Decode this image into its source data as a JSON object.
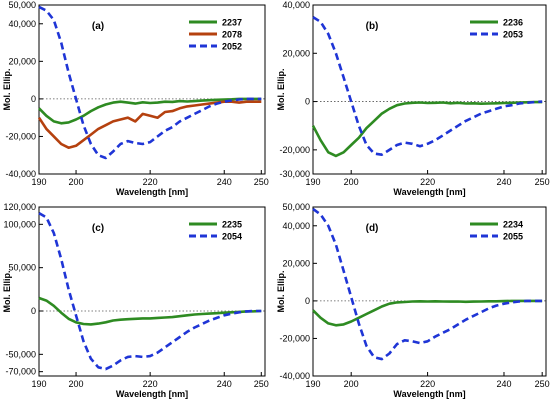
{
  "chart_data": [
    {
      "type": "line",
      "panel_label": "(a)",
      "xlabel": "Wavelength [nm]",
      "ylabel": "Mol. Ellip.",
      "xlim": [
        190,
        251
      ],
      "ylim": [
        -40000,
        50000
      ],
      "xticks": [
        190,
        200,
        220,
        240,
        250
      ],
      "yticks": [
        -40000,
        -20000,
        0,
        20000,
        40000,
        50000
      ],
      "ytick_labels": [
        "-40,000",
        "-20,000",
        "0",
        "20,000",
        "40,000",
        "50,000"
      ],
      "legend_position": "top-right",
      "series": [
        {
          "name": "2237",
          "color": "#2e8b22",
          "style": "solid",
          "x": [
            190,
            192,
            194,
            196,
            198,
            200,
            202,
            204,
            206,
            208,
            210,
            212,
            214,
            216,
            218,
            220,
            222,
            224,
            226,
            228,
            230,
            232,
            234,
            236,
            238,
            240,
            242,
            244,
            246,
            248,
            250
          ],
          "y": [
            -5000,
            -9000,
            -12000,
            -13000,
            -12500,
            -11000,
            -9000,
            -6500,
            -4500,
            -3000,
            -2000,
            -1500,
            -2000,
            -2500,
            -1800,
            -2200,
            -2000,
            -1500,
            -1600,
            -1200,
            -1400,
            -1200,
            -900,
            -700,
            -500,
            -300,
            -200,
            0,
            0,
            0,
            0
          ]
        },
        {
          "name": "2078",
          "color": "#b5410f",
          "style": "solid",
          "x": [
            190,
            192,
            194,
            196,
            198,
            200,
            202,
            204,
            206,
            208,
            210,
            212,
            214,
            216,
            218,
            220,
            222,
            224,
            226,
            228,
            230,
            232,
            234,
            236,
            238,
            240,
            242,
            244,
            246,
            248,
            250
          ],
          "y": [
            -10000,
            -16000,
            -20000,
            -24000,
            -26000,
            -25000,
            -22000,
            -19000,
            -16000,
            -14000,
            -12000,
            -11000,
            -10000,
            -12000,
            -8000,
            -9000,
            -10000,
            -7000,
            -6500,
            -5000,
            -4000,
            -3500,
            -3000,
            -2500,
            -2000,
            -1500,
            -1500,
            -2000,
            -1500,
            -1500,
            -1500
          ]
        },
        {
          "name": "2052",
          "color": "#1f35d6",
          "style": "dashed",
          "x": [
            190,
            192,
            194,
            196,
            198,
            200,
            202,
            204,
            206,
            208,
            210,
            212,
            214,
            216,
            218,
            220,
            222,
            224,
            226,
            228,
            230,
            232,
            234,
            236,
            238,
            240,
            242,
            244,
            246,
            248,
            250
          ],
          "y": [
            49000,
            47000,
            42000,
            30000,
            14000,
            0,
            -14000,
            -24000,
            -30000,
            -31500,
            -28000,
            -24000,
            -22500,
            -23500,
            -24000,
            -23000,
            -20000,
            -17000,
            -15000,
            -12000,
            -10000,
            -8000,
            -6000,
            -4000,
            -2500,
            -1500,
            -800,
            -300,
            0,
            0,
            0
          ]
        }
      ]
    },
    {
      "type": "line",
      "panel_label": "(b)",
      "xlabel": "Wavelength [nm]",
      "ylabel": "Mol. Ellip.",
      "xlim": [
        190,
        251
      ],
      "ylim": [
        -30000,
        40000
      ],
      "xticks": [
        190,
        200,
        220,
        240,
        250
      ],
      "yticks": [
        -30000,
        -20000,
        0,
        20000,
        40000
      ],
      "ytick_labels": [
        "-30,000",
        "-20,000",
        "0",
        "20,000",
        "40,000"
      ],
      "legend_position": "top-right",
      "series": [
        {
          "name": "2236",
          "color": "#2e8b22",
          "style": "solid",
          "x": [
            190,
            192,
            194,
            196,
            198,
            200,
            202,
            204,
            206,
            208,
            210,
            212,
            214,
            216,
            218,
            220,
            222,
            224,
            226,
            228,
            230,
            232,
            234,
            236,
            238,
            240,
            242,
            244,
            246,
            248,
            250
          ],
          "y": [
            -10000,
            -16000,
            -21000,
            -22500,
            -21000,
            -18000,
            -15000,
            -11000,
            -8000,
            -5000,
            -3000,
            -1500,
            -800,
            -500,
            -400,
            -600,
            -500,
            -400,
            -700,
            -500,
            -800,
            -700,
            -900,
            -800,
            -700,
            -600,
            -500,
            -400,
            -300,
            -200,
            -200
          ]
        },
        {
          "name": "2053",
          "color": "#1f35d6",
          "style": "dashed",
          "x": [
            190,
            192,
            194,
            196,
            198,
            200,
            202,
            204,
            206,
            208,
            210,
            212,
            214,
            216,
            218,
            220,
            222,
            224,
            226,
            228,
            230,
            232,
            234,
            236,
            238,
            240,
            242,
            244,
            246,
            248,
            250
          ],
          "y": [
            35000,
            33000,
            28000,
            20000,
            10000,
            0,
            -10000,
            -18000,
            -21500,
            -22000,
            -20000,
            -18000,
            -17000,
            -17500,
            -18500,
            -17500,
            -16000,
            -14000,
            -12000,
            -10000,
            -8000,
            -6500,
            -5000,
            -4000,
            -3000,
            -2000,
            -1500,
            -800,
            -500,
            -200,
            0
          ]
        }
      ]
    },
    {
      "type": "line",
      "panel_label": "(c)",
      "xlabel": "Wavelength [nm]",
      "ylabel": "Mol. Ellip.",
      "xlim": [
        190,
        251
      ],
      "ylim": [
        -75000,
        120000
      ],
      "xticks": [
        190,
        200,
        220,
        240,
        250
      ],
      "yticks": [
        -70000,
        -50000,
        0,
        50000,
        100000,
        120000
      ],
      "ytick_labels": [
        "-70,000",
        "-50,000",
        "0",
        "50,000",
        "100,000",
        "120,000"
      ],
      "legend_position": "top-right",
      "series": [
        {
          "name": "2235",
          "color": "#2e8b22",
          "style": "solid",
          "x": [
            190,
            192,
            194,
            196,
            198,
            200,
            202,
            204,
            206,
            208,
            210,
            212,
            214,
            216,
            218,
            220,
            222,
            224,
            226,
            228,
            230,
            232,
            234,
            236,
            238,
            240,
            242,
            244,
            246,
            248,
            250
          ],
          "y": [
            15000,
            12000,
            6000,
            -2000,
            -9000,
            -13000,
            -15000,
            -15500,
            -14500,
            -13000,
            -11000,
            -10000,
            -9500,
            -9000,
            -8500,
            -8500,
            -8000,
            -7500,
            -7000,
            -6000,
            -5000,
            -4000,
            -3500,
            -3000,
            -2500,
            -2000,
            -1500,
            -1000,
            -500,
            -300,
            0
          ]
        },
        {
          "name": "2054",
          "color": "#1f35d6",
          "style": "dashed",
          "x": [
            190,
            192,
            194,
            196,
            198,
            200,
            202,
            204,
            206,
            208,
            210,
            212,
            214,
            216,
            218,
            220,
            222,
            224,
            226,
            228,
            230,
            232,
            234,
            236,
            238,
            240,
            242,
            244,
            246,
            248,
            250
          ],
          "y": [
            113000,
            108000,
            90000,
            60000,
            25000,
            -5000,
            -35000,
            -55000,
            -65000,
            -67000,
            -63000,
            -57000,
            -53000,
            -52000,
            -53000,
            -52000,
            -48000,
            -42000,
            -36000,
            -30000,
            -24000,
            -19000,
            -15000,
            -11000,
            -8000,
            -5000,
            -3000,
            -1500,
            -500,
            0,
            0
          ]
        }
      ]
    },
    {
      "type": "line",
      "panel_label": "(d)",
      "xlabel": "Wavelength [nm]",
      "ylabel": "Mol. Ellip.",
      "xlim": [
        190,
        251
      ],
      "ylim": [
        -40000,
        50000
      ],
      "xticks": [
        190,
        200,
        220,
        240,
        250
      ],
      "yticks": [
        -40000,
        -20000,
        0,
        20000,
        40000,
        50000
      ],
      "ytick_labels": [
        "-40,000",
        "-20,000",
        "0",
        "20,000",
        "40,000",
        "50,000"
      ],
      "legend_position": "top-right",
      "series": [
        {
          "name": "2234",
          "color": "#2e8b22",
          "style": "solid",
          "x": [
            190,
            192,
            194,
            196,
            198,
            200,
            202,
            204,
            206,
            208,
            210,
            212,
            214,
            216,
            218,
            220,
            222,
            224,
            226,
            228,
            230,
            232,
            234,
            236,
            238,
            240,
            242,
            244,
            246,
            248,
            250
          ],
          "y": [
            -5000,
            -9000,
            -12000,
            -13000,
            -12500,
            -11000,
            -9000,
            -7000,
            -5000,
            -3000,
            -1500,
            -800,
            -600,
            -300,
            -200,
            -300,
            -200,
            -300,
            -400,
            -300,
            -500,
            -400,
            -300,
            -200,
            -200,
            -100,
            0,
            0,
            0,
            0,
            0
          ]
        },
        {
          "name": "2055",
          "color": "#1f35d6",
          "style": "dashed",
          "x": [
            190,
            192,
            194,
            196,
            198,
            200,
            202,
            204,
            206,
            208,
            210,
            212,
            214,
            216,
            218,
            220,
            222,
            224,
            226,
            228,
            230,
            232,
            234,
            236,
            238,
            240,
            242,
            244,
            246,
            248,
            250
          ],
          "y": [
            49000,
            46000,
            40000,
            30000,
            16000,
            2000,
            -12000,
            -24000,
            -30000,
            -31000,
            -28000,
            -23000,
            -21000,
            -21500,
            -22500,
            -21500,
            -19000,
            -17000,
            -15000,
            -12500,
            -10000,
            -8000,
            -6000,
            -4000,
            -2500,
            -1500,
            -800,
            -300,
            0,
            0,
            0
          ]
        }
      ]
    }
  ]
}
